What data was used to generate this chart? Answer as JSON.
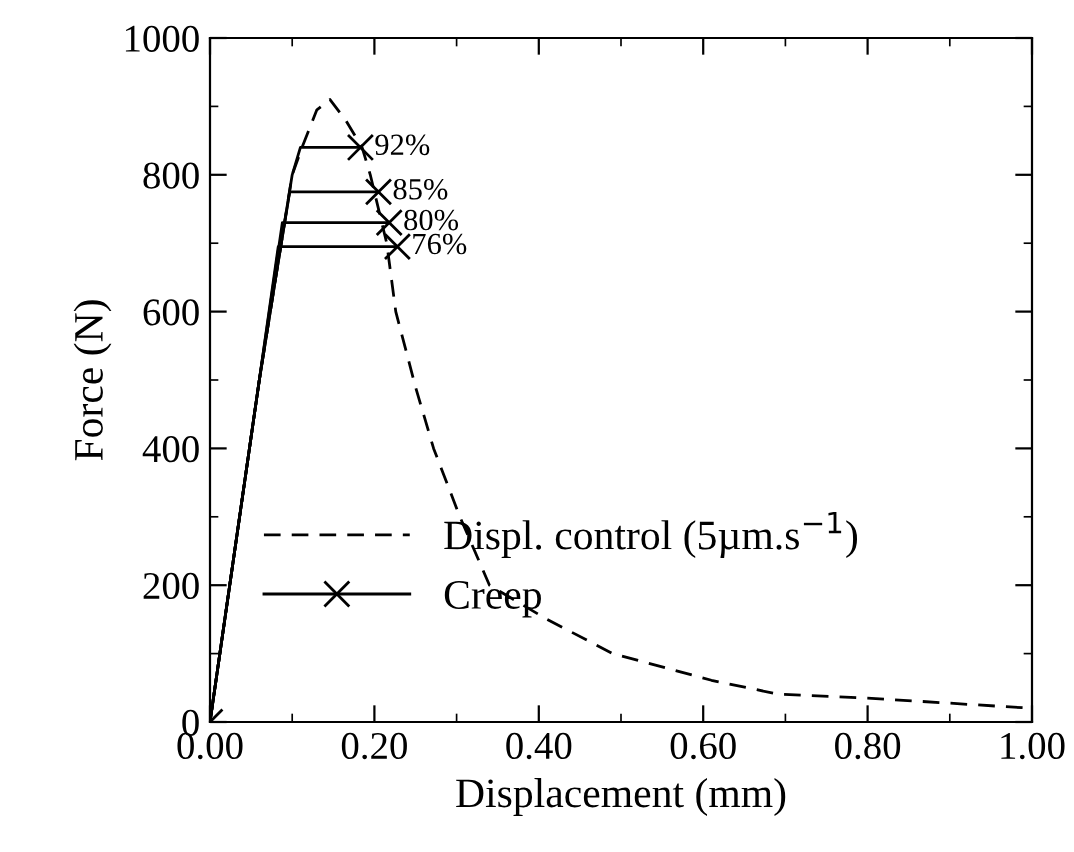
{
  "chart_data": {
    "type": "line",
    "xlabel": "Displacement (mm)",
    "ylabel": "Force (N)",
    "xlim": [
      0,
      1.0
    ],
    "ylim": [
      0,
      1000
    ],
    "xticks": [
      {
        "value": 0,
        "label": "0.00"
      },
      {
        "value": 0.2,
        "label": "0.20"
      },
      {
        "value": 0.4,
        "label": "0.40"
      },
      {
        "value": 0.6,
        "label": "0.60"
      },
      {
        "value": 0.8,
        "label": "0.80"
      },
      {
        "value": 1.0,
        "label": "1.00"
      }
    ],
    "yticks": [
      0,
      200,
      400,
      600,
      800,
      1000
    ],
    "grid": false,
    "legend": "center",
    "series": [
      {
        "name": "Displ. control (5µm.s$^{−1}$)",
        "color": "#000000",
        "line_style": "dashed",
        "marker": "none",
        "x": [
          0,
          0.03,
          0.06,
          0.08,
          0.1,
          0.112,
          0.13,
          0.146,
          0.165,
          0.185,
          0.195,
          0.215,
          0.226,
          0.25,
          0.272,
          0.304,
          0.34,
          0.41,
          0.49,
          0.61,
          0.69,
          0.8,
          1.0
        ],
        "values": [
          0,
          250,
          500,
          650,
          800,
          840,
          895,
          910,
          880,
          840,
          800,
          700,
          600,
          490,
          400,
          300,
          200,
          150,
          100,
          61,
          41,
          35,
          20
        ]
      },
      {
        "color": "#000000",
        "line_style": "solid",
        "marker": "none",
        "x": [
          0,
          0.03,
          0.06,
          0.083,
          0.228
        ],
        "values": [
          0,
          250,
          500,
          695,
          695
        ]
      },
      {
        "color": "#000000",
        "line_style": "solid",
        "marker": "none",
        "x": [
          0,
          0.03,
          0.06,
          0.088,
          0.218
        ],
        "values": [
          0,
          250,
          500,
          730,
          730
        ]
      },
      {
        "color": "#000000",
        "line_style": "solid",
        "marker": "none",
        "x": [
          0,
          0.03,
          0.06,
          0.08,
          0.097,
          0.205
        ],
        "values": [
          0,
          250,
          500,
          650,
          775,
          775
        ]
      },
      {
        "color": "#000000",
        "line_style": "solid",
        "marker": "none",
        "x": [
          0,
          0.03,
          0.06,
          0.08,
          0.1,
          0.11,
          0.183
        ],
        "values": [
          0,
          250,
          500,
          650,
          800,
          840,
          840
        ]
      },
      {
        "name": "Creep",
        "type": "scatter",
        "color": "#000000",
        "marker": "cross",
        "x": [
          0,
          0.228,
          0.218,
          0.205,
          0.183
        ],
        "values": [
          0,
          695,
          730,
          775,
          840
        ]
      }
    ],
    "annotations": [
      {
        "text": "92%",
        "x": 0.183,
        "y": 840
      },
      {
        "text": "85%",
        "x": 0.205,
        "y": 775
      },
      {
        "text": "80%",
        "x": 0.218,
        "y": 730
      },
      {
        "text": "76%",
        "x": 0.228,
        "y": 695
      }
    ]
  }
}
